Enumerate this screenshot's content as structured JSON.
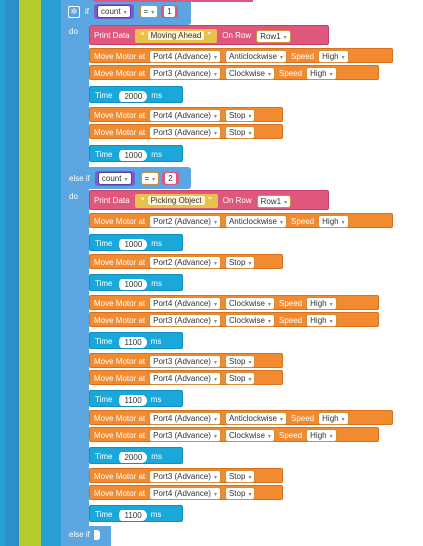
{
  "blocks": {
    "if_label": "if",
    "do_label": "do",
    "else_if_label": "else if",
    "conditions": [
      {
        "variable": "count",
        "operator": "=",
        "value": "1"
      },
      {
        "variable": "count",
        "operator": "=",
        "value": "2"
      }
    ],
    "print_blocks": [
      {
        "label": "Print Data",
        "text": "Moving Ahead",
        "row_label": "On Row",
        "row": "Row1"
      },
      {
        "label": "Print Data",
        "text": "Picking Object",
        "row_label": "On Row",
        "row": "Row1"
      }
    ],
    "motor_label": "Move Motor at",
    "speed_label": "Speed",
    "time_label": "Time",
    "ms_label": "ms",
    "open_quote": "“",
    "close_quote": "”",
    "motors": [
      {
        "port": "Port4 (Advance)",
        "dir": "Anticlockwise",
        "speed": "High"
      },
      {
        "port": "Port3 (Advance)",
        "dir": "Clockwise",
        "speed": "High"
      },
      {
        "port": "Port4 (Advance)",
        "dir": "Stop"
      },
      {
        "port": "Port3 (Advance)",
        "dir": "Stop"
      },
      {
        "port": "Port2 (Advance)",
        "dir": "Anticlockwise",
        "speed": "High"
      },
      {
        "port": "Port2 (Advance)",
        "dir": "Stop"
      },
      {
        "port": "Port4 (Advance)",
        "dir": "Clockwise",
        "speed": "High"
      },
      {
        "port": "Port3 (Advance)",
        "dir": "Clockwise",
        "speed": "High"
      },
      {
        "port": "Port3 (Advance)",
        "dir": "Stop"
      },
      {
        "port": "Port4 (Advance)",
        "dir": "Stop"
      },
      {
        "port": "Port4 (Advance)",
        "dir": "Anticlockwise",
        "speed": "High"
      },
      {
        "port": "Port3 (Advance)",
        "dir": "Clockwise",
        "speed": "High"
      },
      {
        "port": "Port3 (Advance)",
        "dir": "Stop"
      },
      {
        "port": "Port4 (Advance)",
        "dir": "Stop"
      }
    ],
    "times": [
      "2000",
      "1000",
      "1000",
      "1000",
      "1100",
      "1100",
      "2000",
      "1100"
    ]
  },
  "colors": {
    "control": "#5ba5e0",
    "motor": "#f28a30",
    "time": "#1aa7d9",
    "print": "#e0577e",
    "outer_green": "#b5cc2e"
  }
}
